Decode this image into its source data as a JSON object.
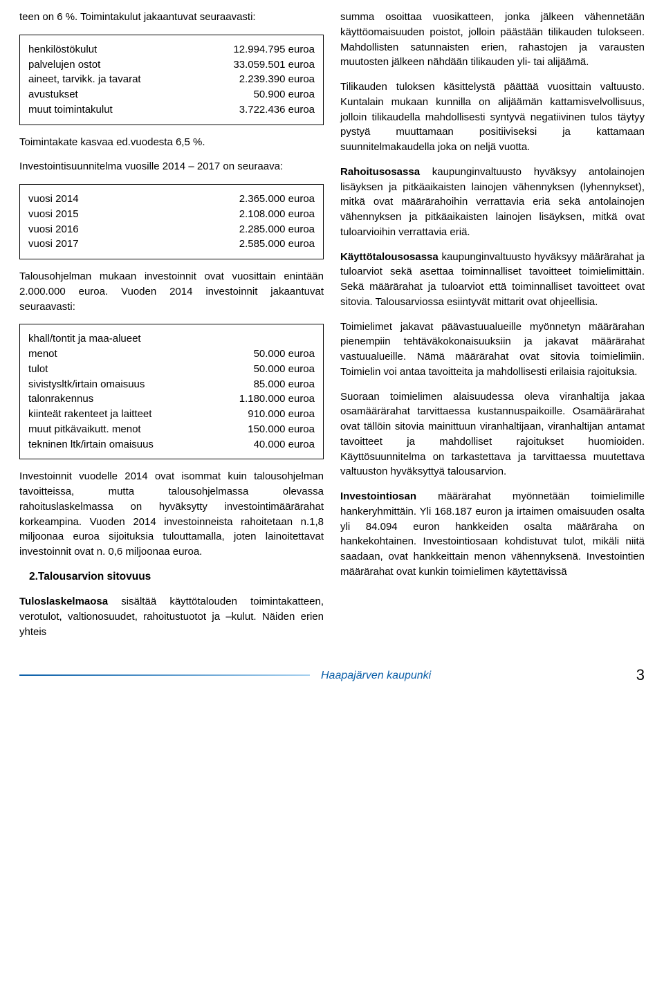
{
  "left": {
    "intro": "teen on 6 %. Toimintakulut jakaantuvat seuraavasti:",
    "box1_rows": [
      {
        "label": "henkilöstökulut",
        "value": "12.994.795 euroa"
      },
      {
        "label": "palvelujen ostot",
        "value": "33.059.501 euroa"
      },
      {
        "label": "aineet, tarvikk. ja tavarat",
        "value": "2.239.390 euroa"
      },
      {
        "label": "avustukset",
        "value": "50.900 euroa"
      },
      {
        "label": "muut toimintakulut",
        "value": "3.722.436 euroa"
      }
    ],
    "p2": "Toimintakate kasvaa ed.vuodesta 6,5 %.",
    "p3": "Investointisuunnitelma vuosille 2014 – 2017 on seuraava:",
    "box2_rows": [
      {
        "label": "vuosi 2014",
        "value": "2.365.000 euroa"
      },
      {
        "label": "vuosi 2015",
        "value": "2.108.000 euroa"
      },
      {
        "label": "vuosi 2016",
        "value": "2.285.000 euroa"
      },
      {
        "label": "vuosi 2017",
        "value": "2.585.000 euroa"
      }
    ],
    "p4": "Talousohjelman mukaan investoinnit ovat vuosittain enintään 2.000.000 euroa. Vuoden 2014 investoinnit jakaantuvat seuraavasti:",
    "box3_header": "khall/tontit ja maa-alueet",
    "box3_rows": [
      {
        "label": "menot",
        "value": "50.000 euroa"
      },
      {
        "label": "tulot",
        "value": "50.000 euroa"
      },
      {
        "label": "sivistysltk/irtain omaisuus",
        "value": "85.000 euroa"
      },
      {
        "label": "talonrakennus",
        "value": "1.180.000 euroa"
      },
      {
        "label": "kiinteät rakenteet ja laitteet",
        "value": "910.000 euroa"
      },
      {
        "label": "muut pitkävaikutt. menot",
        "value": "150.000 euroa"
      },
      {
        "label": "tekninen ltk/irtain omaisuus",
        "value": "40.000 euroa"
      }
    ],
    "p5": "Investoinnit vuodelle 2014 ovat isommat kuin talousohjelman tavoitteissa, mutta talousohjelmassa olevassa rahoituslaskelmassa on hyväksytty investointimäärärahat korkeampina. Vuoden 2014 investoinneista rahoitetaan n.1,8 miljoonaa euroa sijoituksia tulouttamalla, joten lainoitettavat investoinnit ovat n. 0,6 miljoonaa euroa.",
    "heading": "2.Talousarvion sitovuus",
    "p6_bold": "Tuloslaskelmaosa",
    "p6_rest": " sisältää käyttötalouden toimintakatteen, verotulot, valtionosuudet, rahoitustuotot ja –kulut. Näiden erien yhteis"
  },
  "right": {
    "p1": "summa osoittaa vuosikatteen, jonka jälkeen vähennetään käyttöomaisuuden poistot, jolloin päästään tilikauden tulokseen. Mahdollisten satunnaisten erien, rahastojen ja varausten muutosten jälkeen nähdään tilikauden yli- tai alijäämä.",
    "p2": "Tilikauden tuloksen käsittelystä päättää vuosittain valtuusto. Kuntalain mukaan kunnilla on alijäämän kattamisvelvollisuus, jolloin tilikaudella mahdollisesti syntyvä negatiivinen tulos täytyy pystyä muuttamaan positiiviseksi ja kattamaan suunnitelmakaudella joka on neljä vuotta.",
    "p3_bold": "Rahoitusosassa",
    "p3_rest": " kaupunginvaltuusto hyväksyy antolainojen lisäyksen ja pitkäaikaisten lainojen vähennyksen (lyhennykset), mitkä ovat määrärahoihin verrattavia eriä sekä antolainojen vähennyksen ja pitkäaikaisten lainojen lisäyksen, mitkä ovat tuloarvioihin verrattavia eriä.",
    "p4_bold": "Käyttötalousosassa",
    "p4_rest": " kaupunginvaltuusto hyväksyy määrärahat ja tuloarviot sekä asettaa toiminnalliset tavoitteet toimielimittäin. Sekä määrärahat ja tuloarviot että toiminnalliset tavoitteet ovat sitovia. Talousarviossa esiintyvät mittarit ovat ohjeellisia.",
    "p5": "Toimielimet jakavat päävastuualueille myönnetyn määrärahan pienempiin tehtäväkokonaisuuksiin ja jakavat määrärahat vastuualueille. Nämä määrärahat ovat sitovia toimielimiin. Toimielin voi antaa tavoitteita ja mahdollisesti erilaisia rajoituksia.",
    "p6": "Suoraan toimielimen alaisuudessa oleva viranhaltija jakaa osamäärärahat tarvittaessa kustannuspaikoille. Osamäärärahat ovat tällöin sitovia mainittuun viranhaltijaan, viranhaltijan antamat tavoitteet ja mahdolliset rajoitukset huomioiden. Käyttösuunnitelma on tarkastettava ja tarvittaessa muutettava valtuuston hyväksyttyä talousarvion.",
    "p7_bold": "Investointiosan",
    "p7_rest": " määrärahat myönnetään toimielimille hankeryhmittäin. Yli 168.187 euron ja irtaimen omaisuuden osalta yli 84.094 euron hankkeiden osalta määräraha on hankekohtainen. Investointiosaan kohdistuvat tulot, mikäli niitä saadaan, ovat hankkeittain menon vähennyksenä. Investointien määrärahat ovat kunkin toimielimen käytettävissä"
  },
  "footer": {
    "org": "Haapajärven kaupunki",
    "page": "3"
  }
}
